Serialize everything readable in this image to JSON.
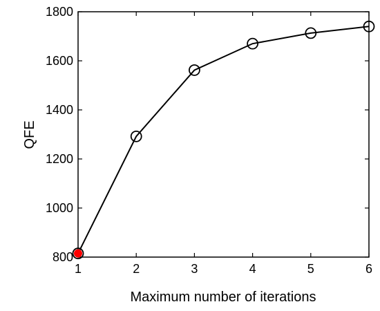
{
  "chart_data": {
    "type": "line",
    "xlabel": "Maximum number of iterations",
    "ylabel": "QFE",
    "xlim": [
      1,
      6
    ],
    "ylim": [
      800,
      1800
    ],
    "xticks": [
      "1",
      "2",
      "3",
      "4",
      "5",
      "6"
    ],
    "yticks": [
      "800",
      "1000",
      "1200",
      "1400",
      "1600",
      "1800"
    ],
    "grid": false,
    "series": [
      {
        "x": [
          1,
          2,
          3,
          4,
          5,
          6
        ],
        "y": [
          815,
          1292,
          1562,
          1670,
          1713,
          1740
        ],
        "color": "#000000",
        "marker": "open-circle"
      }
    ],
    "highlight": {
      "x": 1,
      "y": 815,
      "color": "#ff0000",
      "marker": "filled-circle"
    }
  }
}
